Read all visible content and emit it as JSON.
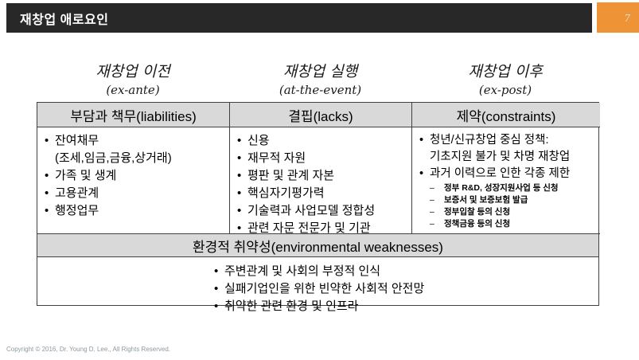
{
  "slide": {
    "title": "재창업 애로요인",
    "page_number": "7"
  },
  "phase_headers": [
    {
      "ko": "재창업 이전",
      "en": "(ex-ante)"
    },
    {
      "ko": "재창업 실행",
      "en": "(at-the-event)"
    },
    {
      "ko": "재창업 이후",
      "en": "(ex-post)"
    }
  ],
  "table": {
    "columns": [
      {
        "header": "부담과 책무(liabilities)",
        "lines": [
          "잔여채무",
          "(조세,임금,금융,상거래)",
          "가족 및 생계",
          "고용관계",
          "행정업무"
        ]
      },
      {
        "header": "결핍(lacks)",
        "lines": [
          "신용",
          "재무적 자원",
          "평판 및 관계 자본",
          "핵심자기평가력",
          "기술력과 사업모델 정합성",
          "관련 자문 전문가 및 기관"
        ]
      },
      {
        "header": "제약(constraints)",
        "lines": [
          "청년/신규창업 중심 정책:",
          "기초지원 불가 및 차명 재창업",
          "과거 이력으로 인한 각종 제한",
          "정부 R&D, 성장지원사업 등 신청",
          "보증서 및 보증보험 발급",
          "정부입찰 등의 신청",
          "정책금융 등의 신청"
        ]
      }
    ],
    "merged_row": "환경적 취약성(environmental weaknesses)",
    "bottom_lines": [
      "주변관계 및 사회의 부정적 인식",
      "실패기업인을 위한 빈약한 사회적 안전망",
      "취약한 관련 환경 및 인프라"
    ]
  },
  "footer": {
    "copyright": "Copyright © 2016, Dr. Young D. Lee., All Rights Reserved."
  },
  "colors": {
    "accent_orange": "#EF9436",
    "title_bar_dark": "#282828",
    "row_gray": "#D9D9D9",
    "border_dark": "#404040"
  }
}
